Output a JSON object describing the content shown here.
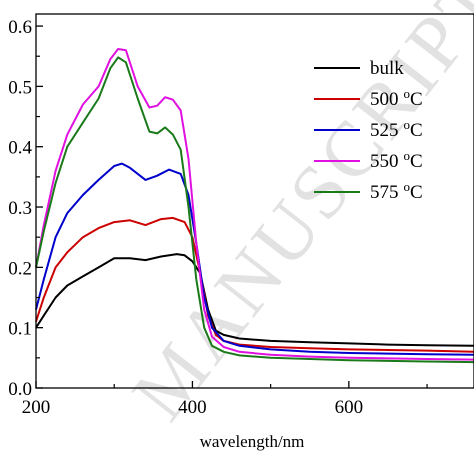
{
  "watermark": "MANUSCRIPT",
  "chart_data": {
    "type": "line",
    "xlabel": "wavelength/nm",
    "ylabel": "",
    "xlim": [
      200,
      760
    ],
    "ylim": [
      0.0,
      0.62
    ],
    "xticks": [
      {
        "value": 200,
        "label": "200"
      },
      {
        "value": 400,
        "label": "400"
      },
      {
        "value": 600,
        "label": "600"
      }
    ],
    "yticks": [
      {
        "value": 0.0,
        "label": "0.0"
      },
      {
        "value": 0.1,
        "label": "0.1"
      },
      {
        "value": 0.2,
        "label": "0.2"
      },
      {
        "value": 0.3,
        "label": "0.3"
      },
      {
        "value": 0.4,
        "label": "0.4"
      },
      {
        "value": 0.5,
        "label": "0.5"
      },
      {
        "value": 0.6,
        "label": "0.6"
      }
    ],
    "legend_position": "top-right",
    "grid": false,
    "series": [
      {
        "name": "bulk",
        "unit": "",
        "color": "#000000",
        "points": [
          [
            200,
            0.1
          ],
          [
            210,
            0.12
          ],
          [
            225,
            0.15
          ],
          [
            240,
            0.17
          ],
          [
            260,
            0.185
          ],
          [
            280,
            0.2
          ],
          [
            300,
            0.215
          ],
          [
            320,
            0.215
          ],
          [
            340,
            0.212
          ],
          [
            360,
            0.218
          ],
          [
            380,
            0.222
          ],
          [
            390,
            0.22
          ],
          [
            400,
            0.21
          ],
          [
            410,
            0.19
          ],
          [
            420,
            0.13
          ],
          [
            430,
            0.095
          ],
          [
            440,
            0.088
          ],
          [
            460,
            0.082
          ],
          [
            500,
            0.078
          ],
          [
            550,
            0.076
          ],
          [
            600,
            0.074
          ],
          [
            650,
            0.072
          ],
          [
            700,
            0.071
          ],
          [
            760,
            0.07
          ]
        ]
      },
      {
        "name": "500",
        "unit": "oC",
        "color": "#cc0000",
        "points": [
          [
            200,
            0.11
          ],
          [
            210,
            0.15
          ],
          [
            225,
            0.2
          ],
          [
            240,
            0.225
          ],
          [
            260,
            0.25
          ],
          [
            280,
            0.265
          ],
          [
            300,
            0.275
          ],
          [
            320,
            0.278
          ],
          [
            340,
            0.27
          ],
          [
            360,
            0.28
          ],
          [
            375,
            0.282
          ],
          [
            390,
            0.275
          ],
          [
            400,
            0.25
          ],
          [
            410,
            0.19
          ],
          [
            420,
            0.12
          ],
          [
            430,
            0.088
          ],
          [
            440,
            0.078
          ],
          [
            460,
            0.072
          ],
          [
            500,
            0.068
          ],
          [
            550,
            0.066
          ],
          [
            600,
            0.064
          ],
          [
            650,
            0.063
          ],
          [
            700,
            0.062
          ],
          [
            760,
            0.06
          ]
        ]
      },
      {
        "name": "525",
        "unit": "oC",
        "color": "#0000cc",
        "points": [
          [
            200,
            0.13
          ],
          [
            210,
            0.18
          ],
          [
            225,
            0.25
          ],
          [
            240,
            0.29
          ],
          [
            260,
            0.32
          ],
          [
            280,
            0.345
          ],
          [
            300,
            0.368
          ],
          [
            310,
            0.372
          ],
          [
            320,
            0.365
          ],
          [
            340,
            0.345
          ],
          [
            355,
            0.352
          ],
          [
            370,
            0.362
          ],
          [
            385,
            0.355
          ],
          [
            395,
            0.32
          ],
          [
            405,
            0.24
          ],
          [
            415,
            0.15
          ],
          [
            425,
            0.1
          ],
          [
            440,
            0.078
          ],
          [
            460,
            0.07
          ],
          [
            500,
            0.064
          ],
          [
            550,
            0.06
          ],
          [
            600,
            0.058
          ],
          [
            650,
            0.057
          ],
          [
            700,
            0.056
          ],
          [
            760,
            0.055
          ]
        ]
      },
      {
        "name": "550",
        "unit": "oC",
        "color": "#e010e0",
        "points": [
          [
            200,
            0.2
          ],
          [
            210,
            0.27
          ],
          [
            225,
            0.36
          ],
          [
            240,
            0.42
          ],
          [
            260,
            0.47
          ],
          [
            280,
            0.5
          ],
          [
            295,
            0.545
          ],
          [
            305,
            0.562
          ],
          [
            315,
            0.56
          ],
          [
            330,
            0.5
          ],
          [
            345,
            0.465
          ],
          [
            355,
            0.468
          ],
          [
            365,
            0.482
          ],
          [
            375,
            0.478
          ],
          [
            385,
            0.46
          ],
          [
            395,
            0.38
          ],
          [
            405,
            0.24
          ],
          [
            415,
            0.13
          ],
          [
            425,
            0.085
          ],
          [
            440,
            0.068
          ],
          [
            460,
            0.06
          ],
          [
            500,
            0.055
          ],
          [
            550,
            0.052
          ],
          [
            600,
            0.05
          ],
          [
            650,
            0.049
          ],
          [
            700,
            0.048
          ],
          [
            760,
            0.047
          ]
        ]
      },
      {
        "name": "575",
        "unit": "oC",
        "color": "#1a7a1a",
        "points": [
          [
            200,
            0.2
          ],
          [
            210,
            0.26
          ],
          [
            225,
            0.34
          ],
          [
            240,
            0.4
          ],
          [
            260,
            0.44
          ],
          [
            280,
            0.48
          ],
          [
            295,
            0.53
          ],
          [
            305,
            0.548
          ],
          [
            315,
            0.54
          ],
          [
            330,
            0.48
          ],
          [
            345,
            0.425
          ],
          [
            355,
            0.422
          ],
          [
            365,
            0.432
          ],
          [
            375,
            0.42
          ],
          [
            385,
            0.395
          ],
          [
            395,
            0.3
          ],
          [
            405,
            0.18
          ],
          [
            415,
            0.1
          ],
          [
            425,
            0.07
          ],
          [
            440,
            0.06
          ],
          [
            460,
            0.054
          ],
          [
            500,
            0.05
          ],
          [
            550,
            0.048
          ],
          [
            600,
            0.046
          ],
          [
            650,
            0.045
          ],
          [
            700,
            0.044
          ],
          [
            760,
            0.043
          ]
        ]
      }
    ]
  }
}
